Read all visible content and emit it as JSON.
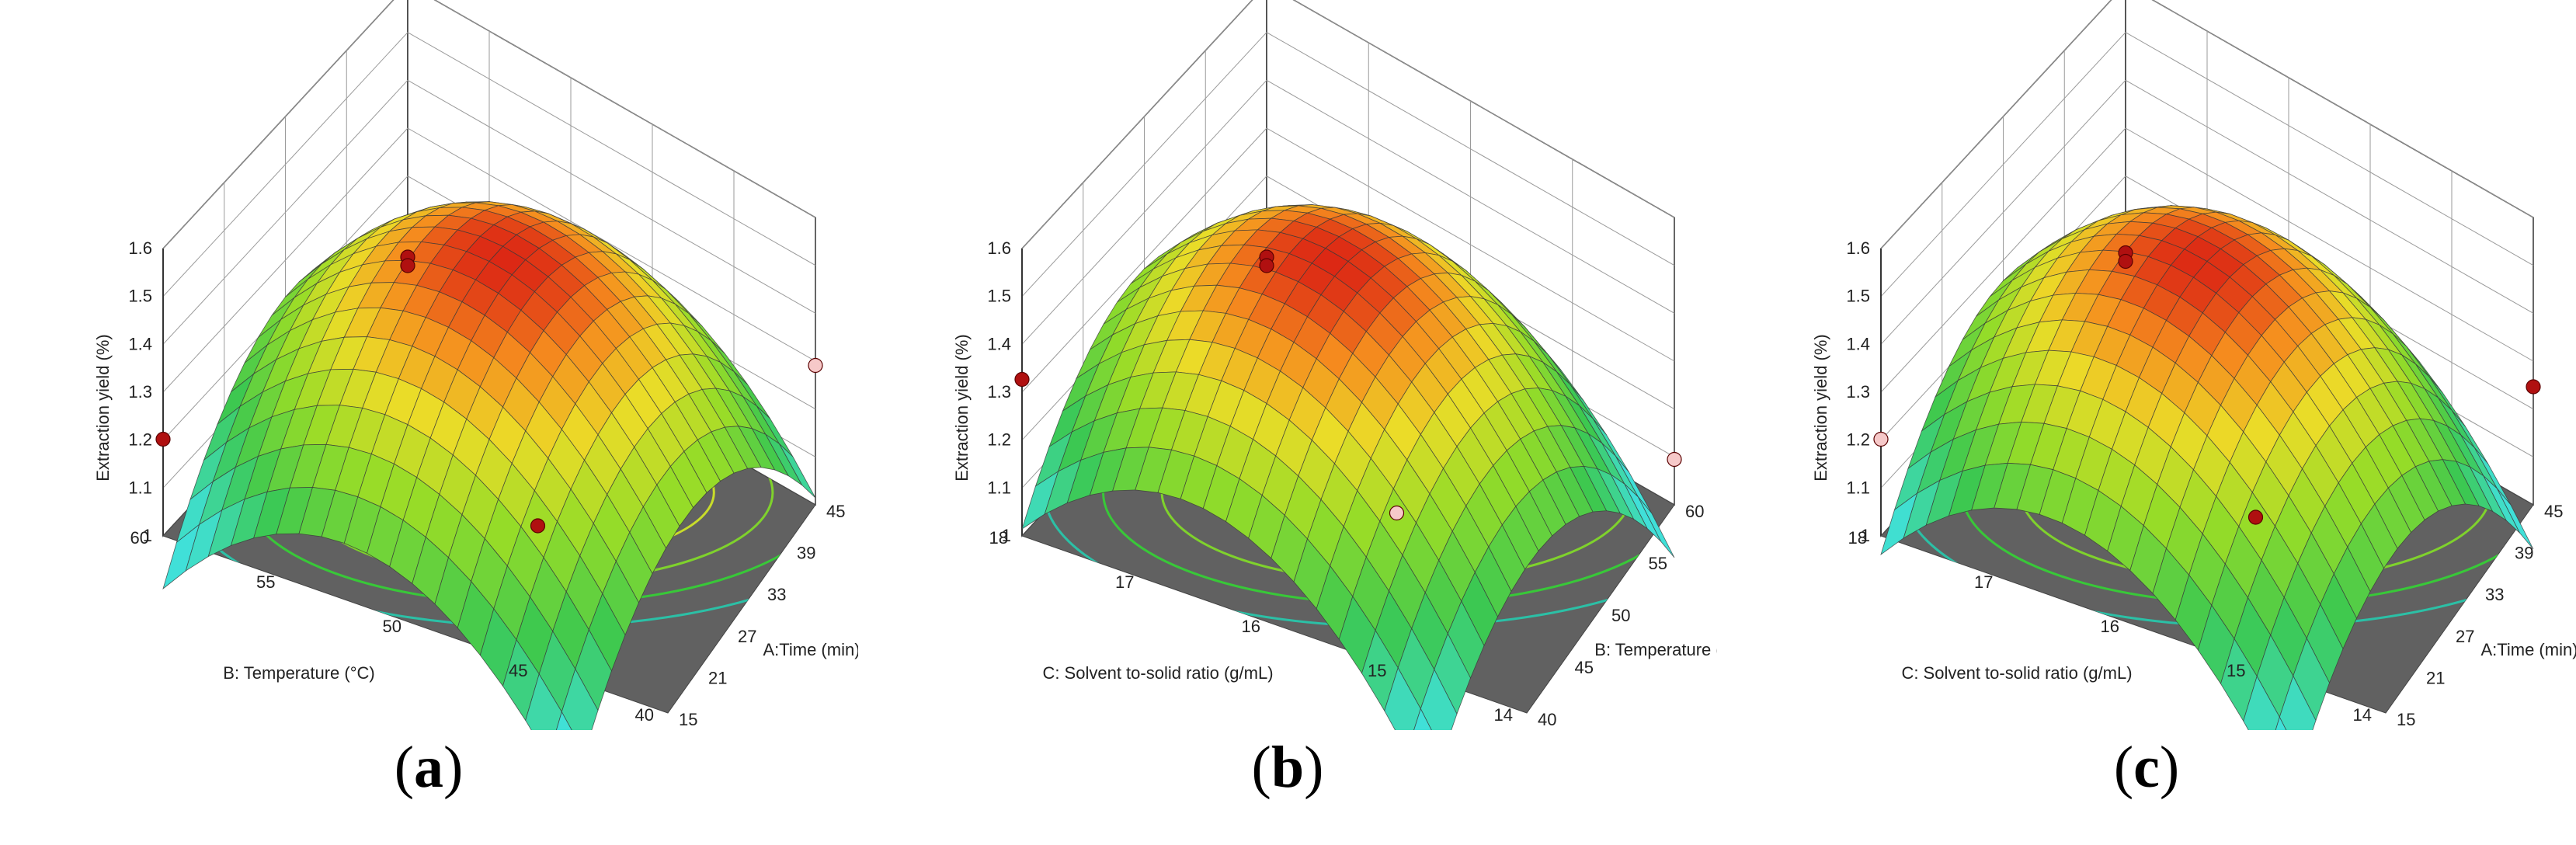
{
  "chart_data": [
    {
      "type": "surface3d",
      "panel_label": "a",
      "zlabel": "Extraction yield (%)",
      "zticks": [
        "1",
        "1.1",
        "1.2",
        "1.3",
        "1.4",
        "1.5",
        "1.6"
      ],
      "zlim": [
        1,
        1.6
      ],
      "left_axis": {
        "label": "B: Temperature (°C)",
        "ticks": [
          "60",
          "55",
          "50",
          "45",
          "40"
        ],
        "range": [
          40,
          60
        ]
      },
      "right_axis": {
        "label": "A:Time (min)",
        "ticks": [
          "15",
          "21",
          "27",
          "33",
          "39",
          "45"
        ],
        "range": [
          15,
          45
        ]
      },
      "surface": {
        "center_yield": 1.57,
        "far_corner_yield": 1.05,
        "left_corner_yield": 1.17,
        "right_corner_yield": 1.31,
        "near_corner_yield": 0.96
      },
      "design_points": [
        {
          "z": 1.58,
          "pos": "center",
          "color": "#b01010"
        },
        {
          "z": 1.56,
          "pos": "center",
          "color": "#b01010"
        },
        {
          "z": 1.19,
          "pos": "left-corner",
          "color": "#b01010"
        },
        {
          "z": 1.29,
          "pos": "right-corner",
          "color": "#f6c9c9"
        },
        {
          "z": 0.94,
          "pos": "near-corner",
          "color": "#b01010"
        }
      ]
    },
    {
      "type": "surface3d",
      "panel_label": "b",
      "zlabel": "Extraction yield (%)",
      "zticks": [
        "1",
        "1.1",
        "1.2",
        "1.3",
        "1.4",
        "1.5",
        "1.6"
      ],
      "zlim": [
        1,
        1.6
      ],
      "left_axis": {
        "label": "C: Solvent to-solid ratio (g/mL)",
        "ticks": [
          "18",
          "17",
          "16",
          "15",
          "14"
        ],
        "range": [
          14,
          18
        ]
      },
      "right_axis": {
        "label": "B: Temperature (°C)",
        "ticks": [
          "40",
          "45",
          "50",
          "55",
          "60"
        ],
        "range": [
          40,
          60
        ]
      },
      "surface": {
        "center_yield": 1.57,
        "far_corner_yield": 1.05,
        "left_corner_yield": 1.31,
        "right_corner_yield": 1.17,
        "near_corner_yield": 1.0
      },
      "design_points": [
        {
          "z": 1.58,
          "pos": "center",
          "color": "#b01010"
        },
        {
          "z": 1.56,
          "pos": "center",
          "color": "#b01010"
        },
        {
          "z": 1.33,
          "pos": "left-corner",
          "color": "#b01010"
        },
        {
          "z": 1.07,
          "pos": "right-corner",
          "color": "#f6c9c9"
        },
        {
          "z": 0.97,
          "pos": "near-corner",
          "color": "#f6c9c9"
        }
      ]
    },
    {
      "type": "surface3d",
      "panel_label": "c",
      "zlabel": "Extraction yield (%)",
      "zticks": [
        "1",
        "1.1",
        "1.2",
        "1.3",
        "1.4",
        "1.5",
        "1.6"
      ],
      "zlim": [
        1,
        1.6
      ],
      "left_axis": {
        "label": "C: Solvent to-solid ratio (g/mL)",
        "ticks": [
          "18",
          "17",
          "16",
          "15",
          "14"
        ],
        "range": [
          14,
          18
        ]
      },
      "right_axis": {
        "label": "A:Time (min)",
        "ticks": [
          "15",
          "21",
          "27",
          "33",
          "39",
          "45"
        ],
        "range": [
          15,
          45
        ]
      },
      "surface": {
        "center_yield": 1.57,
        "far_corner_yield": 1.05,
        "left_corner_yield": 1.26,
        "right_corner_yield": 1.2,
        "near_corner_yield": 0.98
      },
      "design_points": [
        {
          "z": 1.59,
          "pos": "center",
          "color": "#b01010"
        },
        {
          "z": 1.57,
          "pos": "center",
          "color": "#b01010"
        },
        {
          "z": 1.19,
          "pos": "left-corner",
          "color": "#f6c9c9"
        },
        {
          "z": 1.24,
          "pos": "right-corner",
          "color": "#b01010"
        },
        {
          "z": 0.96,
          "pos": "near-corner",
          "color": "#b01010"
        }
      ]
    }
  ],
  "colors": {
    "floor": "#616161",
    "grid": "#9a9a9a",
    "axis": "#333333",
    "mesh": "#3a3a3a"
  }
}
